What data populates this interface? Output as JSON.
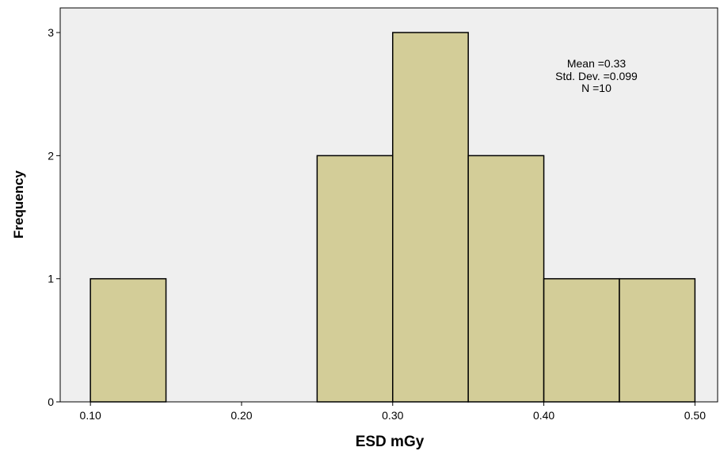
{
  "chart_data": {
    "type": "bar",
    "subtype": "histogram",
    "xlabel": "ESD mGy",
    "ylabel": "Frequency",
    "x_ticks": [
      "0.10",
      "0.20",
      "0.30",
      "0.40",
      "0.50"
    ],
    "y_ticks": [
      "0",
      "1",
      "2",
      "3"
    ],
    "xlim": [
      0.08,
      0.515
    ],
    "ylim": [
      0,
      3.2
    ],
    "bins": [
      {
        "start": 0.1,
        "end": 0.15,
        "count": 1
      },
      {
        "start": 0.15,
        "end": 0.2,
        "count": 0
      },
      {
        "start": 0.2,
        "end": 0.25,
        "count": 0
      },
      {
        "start": 0.25,
        "end": 0.3,
        "count": 2
      },
      {
        "start": 0.3,
        "end": 0.35,
        "count": 3
      },
      {
        "start": 0.35,
        "end": 0.4,
        "count": 2
      },
      {
        "start": 0.4,
        "end": 0.45,
        "count": 1
      },
      {
        "start": 0.45,
        "end": 0.5,
        "count": 1
      }
    ],
    "stats": [
      "Mean =0.33",
      "Std. Dev. =0.099",
      "N =10"
    ],
    "grid": false,
    "colors": {
      "bar_fill": "#d3cd98",
      "bar_stroke": "#000000",
      "plot_background": "#efefef"
    }
  }
}
